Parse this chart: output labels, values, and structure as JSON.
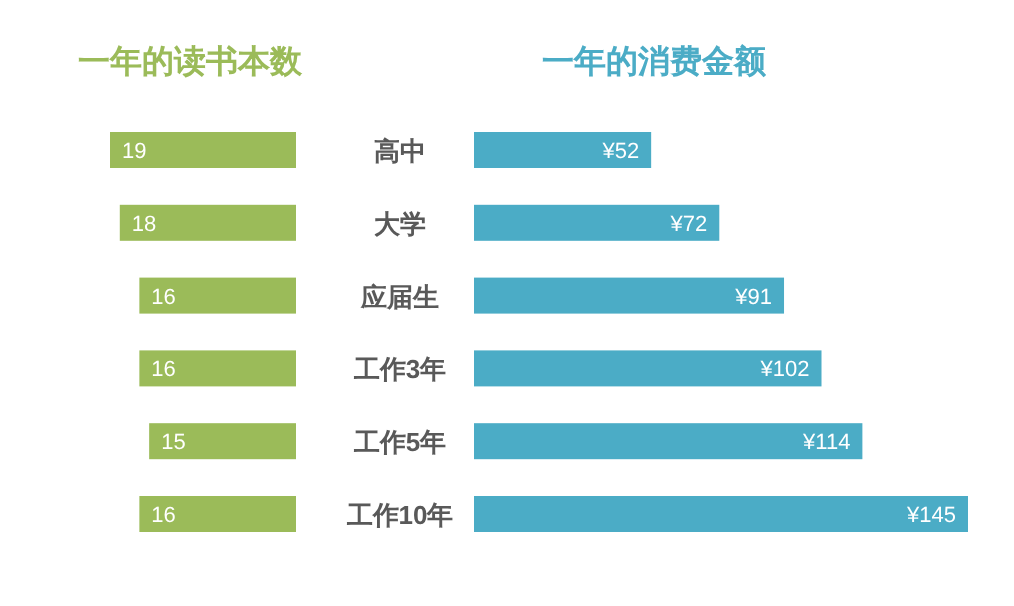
{
  "chart_data": [
    {
      "type": "bar",
      "title": "一年的读书本数",
      "orientation": "horizontal",
      "categories": [
        "高中",
        "大学",
        "应届生",
        "工作3年",
        "工作5年",
        "工作10年"
      ],
      "data_labels": true,
      "values": [
        19,
        18,
        16,
        16,
        15,
        16
      ],
      "color": "#9bbb59"
    },
    {
      "type": "bar",
      "title": "一年的消费金额",
      "orientation": "horizontal",
      "categories": [
        null,
        null,
        null,
        null,
        null,
        null
      ],
      "values": [
        52,
        72,
        91,
        102,
        114,
        145
      ],
      "value_labels": [
        "¥52",
        "¥72",
        "¥91",
        "¥102",
        "¥114",
        "¥145"
      ],
      "color": "#4bacc6"
    }
  ]
}
